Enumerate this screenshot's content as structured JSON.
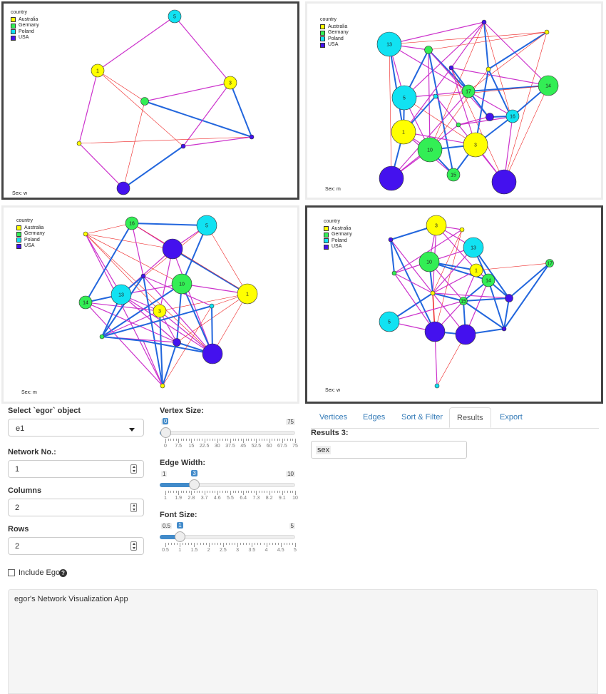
{
  "plots": [
    {
      "sex_label": "Sex: w",
      "selected": true,
      "legend": {
        "title": "country",
        "items": [
          "Australia",
          "Germany",
          "Poland",
          "USA"
        ]
      },
      "nodes": [
        {
          "id": "p1n5",
          "label": "5",
          "country": "Poland",
          "size": "m"
        },
        {
          "id": "p1n1",
          "label": "1",
          "country": "Australia",
          "size": "m"
        },
        {
          "id": "p1n3",
          "label": "3",
          "country": "Australia",
          "size": "m"
        },
        {
          "id": "p1g1",
          "label": "",
          "country": "Germany",
          "size": "s"
        },
        {
          "id": "p1a1",
          "label": "",
          "country": "Australia",
          "size": "xs"
        },
        {
          "id": "p1u1",
          "label": "",
          "country": "USA",
          "size": "xs"
        },
        {
          "id": "p1u2",
          "label": "",
          "country": "USA",
          "size": "xs"
        },
        {
          "id": "p1u3",
          "label": "",
          "country": "USA",
          "size": "m"
        }
      ]
    },
    {
      "sex_label": "Sex: m",
      "selected": false,
      "legend": {
        "title": "country",
        "items": [
          "Australia",
          "Germany",
          "Poland",
          "USA"
        ]
      },
      "nodes": [
        {
          "id": "p2n13",
          "label": "13",
          "country": "Poland",
          "size": "xl"
        },
        {
          "id": "p2n5",
          "label": "5",
          "country": "Poland",
          "size": "xl"
        },
        {
          "id": "p2n17",
          "label": "17",
          "country": "Germany",
          "size": "m"
        },
        {
          "id": "p2n14",
          "label": "14",
          "country": "Germany",
          "size": "l"
        },
        {
          "id": "p2n16",
          "label": "16",
          "country": "Poland",
          "size": "m"
        },
        {
          "id": "p2n1",
          "label": "1",
          "country": "Australia",
          "size": "xl"
        },
        {
          "id": "p2n10",
          "label": "10",
          "country": "Germany",
          "size": "xl"
        },
        {
          "id": "p2n3",
          "label": "3",
          "country": "Australia",
          "size": "xl"
        },
        {
          "id": "p2n15",
          "label": "15",
          "country": "Germany",
          "size": "m"
        },
        {
          "id": "p2u1",
          "label": "",
          "country": "USA",
          "size": "xl"
        },
        {
          "id": "p2u2",
          "label": "",
          "country": "USA",
          "size": "xl"
        },
        {
          "id": "p2g1",
          "label": "",
          "country": "Germany",
          "size": "s"
        },
        {
          "id": "p2u3",
          "label": "",
          "country": "USA",
          "size": "xs"
        },
        {
          "id": "p2a1",
          "label": "",
          "country": "Australia",
          "size": "xs"
        },
        {
          "id": "p2u4",
          "label": "",
          "country": "USA",
          "size": "xs"
        },
        {
          "id": "p2a2",
          "label": "",
          "country": "Australia",
          "size": "xs"
        },
        {
          "id": "p2u5",
          "label": "",
          "country": "USA",
          "size": "s"
        },
        {
          "id": "p2p1",
          "label": "",
          "country": "Poland",
          "size": "xs"
        },
        {
          "id": "p2g2",
          "label": "",
          "country": "Germany",
          "size": "xs"
        }
      ]
    },
    {
      "sex_label": "Sex: m",
      "selected": false,
      "legend": {
        "title": "country",
        "items": [
          "Australia",
          "Germany",
          "Poland",
          "USA"
        ]
      },
      "nodes": [
        {
          "id": "p3n16",
          "label": "16",
          "country": "Germany",
          "size": "m"
        },
        {
          "id": "p3n5",
          "label": "5",
          "country": "Poland",
          "size": "l"
        },
        {
          "id": "p3u1",
          "label": "",
          "country": "USA",
          "size": "l"
        },
        {
          "id": "p3n10",
          "label": "10",
          "country": "Germany",
          "size": "l"
        },
        {
          "id": "p3n1",
          "label": "1",
          "country": "Australia",
          "size": "l"
        },
        {
          "id": "p3n14",
          "label": "14",
          "country": "Germany",
          "size": "m"
        },
        {
          "id": "p3n13",
          "label": "13",
          "country": "Poland",
          "size": "l"
        },
        {
          "id": "p3n3",
          "label": "3",
          "country": "Australia",
          "size": "m"
        },
        {
          "id": "p3u2",
          "label": "",
          "country": "USA",
          "size": "s"
        },
        {
          "id": "p3u3",
          "label": "",
          "country": "USA",
          "size": "l"
        },
        {
          "id": "p3g1",
          "label": "",
          "country": "Germany",
          "size": "xs"
        },
        {
          "id": "p3a1",
          "label": "",
          "country": "Australia",
          "size": "xs"
        },
        {
          "id": "p3a2",
          "label": "",
          "country": "Australia",
          "size": "xs"
        },
        {
          "id": "p3u4",
          "label": "",
          "country": "USA",
          "size": "xs"
        },
        {
          "id": "p3p1",
          "label": "",
          "country": "Poland",
          "size": "xs"
        }
      ]
    },
    {
      "sex_label": "Sex: w",
      "selected": true,
      "legend": {
        "title": "country",
        "items": [
          "Australia",
          "Germany",
          "Poland",
          "USA"
        ]
      },
      "nodes": [
        {
          "id": "p4n3",
          "label": "3",
          "country": "Australia",
          "size": "l"
        },
        {
          "id": "p4n13",
          "label": "13",
          "country": "Poland",
          "size": "l"
        },
        {
          "id": "p4n10",
          "label": "10",
          "country": "Germany",
          "size": "l"
        },
        {
          "id": "p4n1",
          "label": "1",
          "country": "Australia",
          "size": "m"
        },
        {
          "id": "p4n14",
          "label": "14",
          "country": "Germany",
          "size": "m"
        },
        {
          "id": "p4n17",
          "label": "17",
          "country": "Germany",
          "size": "s"
        },
        {
          "id": "p4n15",
          "label": "15",
          "country": "Germany",
          "size": "s"
        },
        {
          "id": "p4n5",
          "label": "5",
          "country": "Poland",
          "size": "l"
        },
        {
          "id": "p4u1",
          "label": "",
          "country": "USA",
          "size": "l"
        },
        {
          "id": "p4u2",
          "label": "",
          "country": "USA",
          "size": "l"
        },
        {
          "id": "p4u3",
          "label": "",
          "country": "USA",
          "size": "s"
        },
        {
          "id": "p4a1",
          "label": "",
          "country": "Australia",
          "size": "xs"
        },
        {
          "id": "p4u4",
          "label": "",
          "country": "USA",
          "size": "xs"
        },
        {
          "id": "p4g1",
          "label": "",
          "country": "Germany",
          "size": "xs"
        },
        {
          "id": "p4a2",
          "label": "",
          "country": "Australia",
          "size": "xs"
        },
        {
          "id": "p4u5",
          "label": "",
          "country": "USA",
          "size": "xs"
        },
        {
          "id": "p4p1",
          "label": "",
          "country": "Poland",
          "size": "xs"
        }
      ]
    }
  ],
  "colors": {
    "Australia": "#ffff00",
    "Germany": "#33ee55",
    "Poland": "#11e2f2",
    "USA": "#4411ee",
    "edge_same": "#2266dd",
    "edge_diff": "#cc33cc",
    "edge_thin": "#ee2222",
    "slider_blue": "#428bca",
    "link": "#337ab7"
  },
  "controls": {
    "select_label": "Select `egor` object",
    "select_value": "e1",
    "network_label": "Network No.:",
    "network_value": "1",
    "columns_label": "Columns",
    "columns_value": "2",
    "rows_label": "Rows",
    "rows_value": "2",
    "include_ego_label": "Include Ego",
    "include_ego_checked": false
  },
  "sliders": [
    {
      "label": "Vertex Size:",
      "min_label": "0",
      "max_label": "75",
      "value_label": "0",
      "fraction": 0.0,
      "grid": [
        "0",
        "7.5",
        "15",
        "22.5",
        "30",
        "37.5",
        "45",
        "52.5",
        "60",
        "67.5",
        "75"
      ]
    },
    {
      "label": "Edge Width:",
      "min_label": "1",
      "max_label": "10",
      "value_label": "3",
      "fraction": 0.222,
      "grid": [
        "1",
        "1.9",
        "2.8",
        "3.7",
        "4.6",
        "5.5",
        "6.4",
        "7.3",
        "8.2",
        "9.1",
        "10"
      ]
    },
    {
      "label": "Font Size:",
      "min_label": "0.5",
      "max_label": "5",
      "value_label": "1",
      "fraction": 0.111,
      "grid": [
        "0.5",
        "1",
        "1.5",
        "2",
        "2.5",
        "3",
        "3.5",
        "4",
        "4.5",
        "5"
      ]
    }
  ],
  "tabs": [
    {
      "label": "Vertices",
      "active": false
    },
    {
      "label": "Edges",
      "active": false
    },
    {
      "label": "Sort & Filter",
      "active": false
    },
    {
      "label": "Results",
      "active": true
    },
    {
      "label": "Export",
      "active": false
    }
  ],
  "results": {
    "label": "Results 3:",
    "tag": "sex"
  },
  "log_text": "egor's Network Visualization App"
}
